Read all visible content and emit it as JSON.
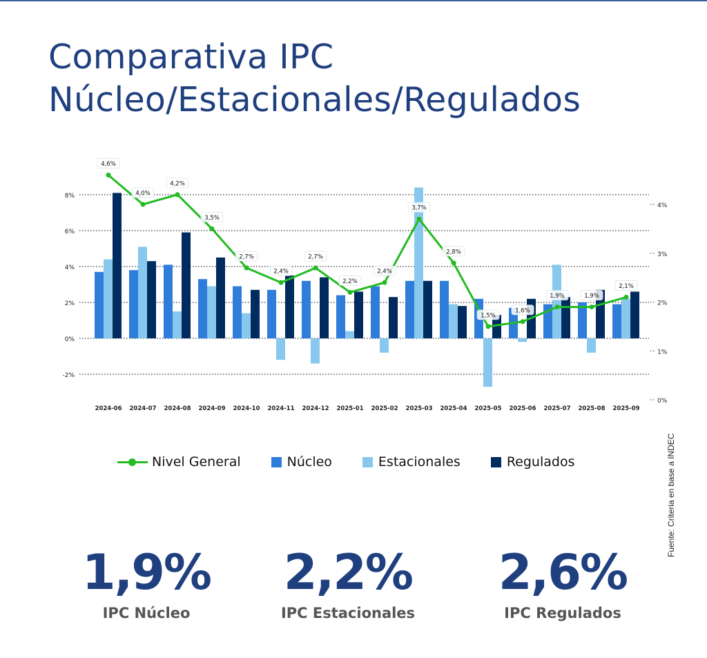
{
  "title": {
    "line1": "Comparativa IPC",
    "line2": "Núcleo/Estacionales/Regulados"
  },
  "source": "Fuente: Criteria en base a INDEC",
  "colors": {
    "nivel": "#22bb22",
    "nucleo": "#2e7ddb",
    "estacionales": "#88c8ee",
    "regulados": "#002b5e",
    "title": "#1f3f7f"
  },
  "chart_data": {
    "type": "bar",
    "categories": [
      "2024-06",
      "2024-07",
      "2024-08",
      "2024-09",
      "2024-10",
      "2024-11",
      "2024-12",
      "2025-01",
      "2025-02",
      "2025-03",
      "2025-04",
      "2025-05",
      "2025-06",
      "2025-07",
      "2025-08",
      "2025-09"
    ],
    "series": [
      {
        "name": "Núcleo",
        "axis": "left",
        "values": [
          3.7,
          3.8,
          4.1,
          3.3,
          2.9,
          2.7,
          3.2,
          2.4,
          2.9,
          3.2,
          3.2,
          2.2,
          1.7,
          1.9,
          2.0,
          1.9
        ]
      },
      {
        "name": "Estacionales",
        "axis": "left",
        "values": [
          4.4,
          5.1,
          1.5,
          2.9,
          1.4,
          -1.2,
          -1.4,
          0.4,
          -0.8,
          8.4,
          1.9,
          -2.7,
          -0.2,
          4.1,
          -0.8,
          2.2
        ]
      },
      {
        "name": "Regulados",
        "axis": "left",
        "values": [
          8.1,
          4.3,
          5.9,
          4.5,
          2.7,
          3.5,
          3.4,
          2.6,
          2.3,
          3.2,
          1.8,
          1.3,
          2.2,
          2.3,
          2.7,
          2.6
        ]
      },
      {
        "name": "Nivel General",
        "type": "line",
        "axis": "right",
        "values": [
          4.6,
          4.0,
          4.2,
          3.5,
          2.7,
          2.4,
          2.7,
          2.2,
          2.4,
          3.7,
          2.8,
          1.5,
          1.6,
          1.9,
          1.9,
          2.1
        ],
        "labels": [
          "4,6%",
          "4,0%",
          "4,2%",
          "3,5%",
          "2,7%",
          "2,4%",
          "2,7%",
          "2,2%",
          "2,4%",
          "3,7%",
          "2,8%",
          "1,5%",
          "1,6%",
          "1,9%",
          "1,9%",
          "2,1%"
        ]
      }
    ],
    "left_axis": {
      "ticks": [
        -2,
        0,
        2,
        4,
        6,
        8
      ],
      "tick_labels": [
        "-2%",
        "0%",
        "2%",
        "4%",
        "6%",
        "8%"
      ],
      "range": [
        -3.4,
        8.5
      ]
    },
    "right_axis": {
      "ticks": [
        0,
        1,
        2,
        3,
        4
      ],
      "tick_labels": [
        "0%",
        "1%",
        "2%",
        "3%",
        "4%"
      ],
      "range": [
        0,
        4.4
      ]
    },
    "legend": [
      "Nivel General",
      "Núcleo",
      "Estacionales",
      "Regulados"
    ],
    "legend_position": "bottom",
    "grid": true
  },
  "kpis": [
    {
      "value": "1,9%",
      "label": "IPC Núcleo"
    },
    {
      "value": "2,2%",
      "label": "IPC Estacionales"
    },
    {
      "value": "2,6%",
      "label": "IPC Regulados"
    }
  ]
}
